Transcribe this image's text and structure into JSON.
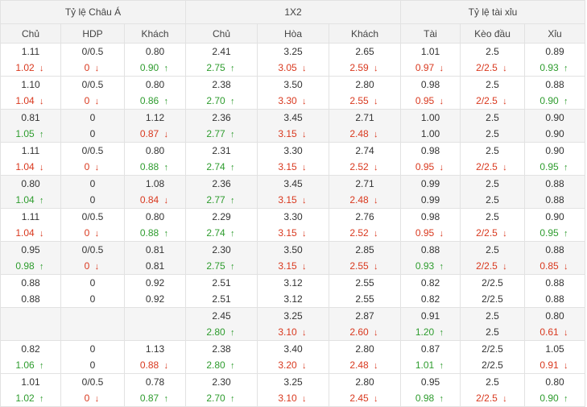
{
  "groups": [
    "Tỷ lệ Châu Á",
    "1X2",
    "Tỷ lệ tài xỉu"
  ],
  "columns": [
    "Chủ",
    "HDP",
    "Khách",
    "Chủ",
    "Hòa",
    "Khách",
    "Tài",
    "Kèo đầu",
    "Xỉu"
  ],
  "rows": [
    {
      "alt": false,
      "cells": [
        {
          "top": "1.11",
          "bottom": "1.02",
          "dir": "down"
        },
        {
          "top": "0/0.5",
          "bottom": "0",
          "dir": "down"
        },
        {
          "top": "0.80",
          "bottom": "0.90",
          "dir": "up"
        },
        {
          "top": "2.41",
          "bottom": "2.75",
          "dir": "up"
        },
        {
          "top": "3.25",
          "bottom": "3.05",
          "dir": "down"
        },
        {
          "top": "2.65",
          "bottom": "2.59",
          "dir": "down"
        },
        {
          "top": "1.01",
          "bottom": "0.97",
          "dir": "down"
        },
        {
          "top": "2.5",
          "bottom": "2/2.5",
          "dir": "down"
        },
        {
          "top": "0.89",
          "bottom": "0.93",
          "dir": "up"
        }
      ]
    },
    {
      "alt": false,
      "cells": [
        {
          "top": "1.10",
          "bottom": "1.04",
          "dir": "down"
        },
        {
          "top": "0/0.5",
          "bottom": "0",
          "dir": "down"
        },
        {
          "top": "0.80",
          "bottom": "0.86",
          "dir": "up"
        },
        {
          "top": "2.38",
          "bottom": "2.70",
          "dir": "up"
        },
        {
          "top": "3.50",
          "bottom": "3.30",
          "dir": "down"
        },
        {
          "top": "2.80",
          "bottom": "2.55",
          "dir": "down"
        },
        {
          "top": "0.98",
          "bottom": "0.95",
          "dir": "down"
        },
        {
          "top": "2.5",
          "bottom": "2/2.5",
          "dir": "down"
        },
        {
          "top": "0.88",
          "bottom": "0.90",
          "dir": "up"
        }
      ]
    },
    {
      "alt": true,
      "cells": [
        {
          "top": "0.81",
          "bottom": "1.05",
          "dir": "up"
        },
        {
          "top": "0",
          "bottom": "0",
          "dir": ""
        },
        {
          "top": "1.12",
          "bottom": "0.87",
          "dir": "down"
        },
        {
          "top": "2.36",
          "bottom": "2.77",
          "dir": "up"
        },
        {
          "top": "3.45",
          "bottom": "3.15",
          "dir": "down"
        },
        {
          "top": "2.71",
          "bottom": "2.48",
          "dir": "down"
        },
        {
          "top": "1.00",
          "bottom": "1.00",
          "dir": ""
        },
        {
          "top": "2.5",
          "bottom": "2.5",
          "dir": ""
        },
        {
          "top": "0.90",
          "bottom": "0.90",
          "dir": ""
        }
      ]
    },
    {
      "alt": false,
      "cells": [
        {
          "top": "1.11",
          "bottom": "1.04",
          "dir": "down"
        },
        {
          "top": "0/0.5",
          "bottom": "0",
          "dir": "down"
        },
        {
          "top": "0.80",
          "bottom": "0.88",
          "dir": "up"
        },
        {
          "top": "2.31",
          "bottom": "2.74",
          "dir": "up"
        },
        {
          "top": "3.30",
          "bottom": "3.15",
          "dir": "down"
        },
        {
          "top": "2.74",
          "bottom": "2.52",
          "dir": "down"
        },
        {
          "top": "0.98",
          "bottom": "0.95",
          "dir": "down"
        },
        {
          "top": "2.5",
          "bottom": "2/2.5",
          "dir": "down"
        },
        {
          "top": "0.90",
          "bottom": "0.95",
          "dir": "up"
        }
      ]
    },
    {
      "alt": true,
      "cells": [
        {
          "top": "0.80",
          "bottom": "1.04",
          "dir": "up"
        },
        {
          "top": "0",
          "bottom": "0",
          "dir": ""
        },
        {
          "top": "1.08",
          "bottom": "0.84",
          "dir": "down"
        },
        {
          "top": "2.36",
          "bottom": "2.77",
          "dir": "up"
        },
        {
          "top": "3.45",
          "bottom": "3.15",
          "dir": "down"
        },
        {
          "top": "2.71",
          "bottom": "2.48",
          "dir": "down"
        },
        {
          "top": "0.99",
          "bottom": "0.99",
          "dir": ""
        },
        {
          "top": "2.5",
          "bottom": "2.5",
          "dir": ""
        },
        {
          "top": "0.88",
          "bottom": "0.88",
          "dir": ""
        }
      ]
    },
    {
      "alt": false,
      "cells": [
        {
          "top": "1.11",
          "bottom": "1.04",
          "dir": "down"
        },
        {
          "top": "0/0.5",
          "bottom": "0",
          "dir": "down"
        },
        {
          "top": "0.80",
          "bottom": "0.88",
          "dir": "up"
        },
        {
          "top": "2.29",
          "bottom": "2.74",
          "dir": "up"
        },
        {
          "top": "3.30",
          "bottom": "3.15",
          "dir": "down"
        },
        {
          "top": "2.76",
          "bottom": "2.52",
          "dir": "down"
        },
        {
          "top": "0.98",
          "bottom": "0.95",
          "dir": "down"
        },
        {
          "top": "2.5",
          "bottom": "2/2.5",
          "dir": "down"
        },
        {
          "top": "0.90",
          "bottom": "0.95",
          "dir": "up"
        }
      ]
    },
    {
      "alt": true,
      "cells": [
        {
          "top": "0.95",
          "bottom": "0.98",
          "dir": "up"
        },
        {
          "top": "0/0.5",
          "bottom": "0",
          "dir": "down"
        },
        {
          "top": "0.81",
          "bottom": "0.81",
          "dir": ""
        },
        {
          "top": "2.30",
          "bottom": "2.75",
          "dir": "up"
        },
        {
          "top": "3.50",
          "bottom": "3.15",
          "dir": "down"
        },
        {
          "top": "2.85",
          "bottom": "2.55",
          "dir": "down"
        },
        {
          "top": "0.88",
          "bottom": "0.93",
          "dir": "up"
        },
        {
          "top": "2.5",
          "bottom": "2/2.5",
          "dir": "down"
        },
        {
          "top": "0.88",
          "bottom": "0.85",
          "dir": "down"
        }
      ]
    },
    {
      "alt": false,
      "cells": [
        {
          "top": "0.88",
          "bottom": "0.88",
          "dir": ""
        },
        {
          "top": "0",
          "bottom": "0",
          "dir": ""
        },
        {
          "top": "0.92",
          "bottom": "0.92",
          "dir": ""
        },
        {
          "top": "2.51",
          "bottom": "2.51",
          "dir": ""
        },
        {
          "top": "3.12",
          "bottom": "3.12",
          "dir": ""
        },
        {
          "top": "2.55",
          "bottom": "2.55",
          "dir": ""
        },
        {
          "top": "0.82",
          "bottom": "0.82",
          "dir": ""
        },
        {
          "top": "2/2.5",
          "bottom": "2/2.5",
          "dir": ""
        },
        {
          "top": "0.88",
          "bottom": "0.88",
          "dir": ""
        }
      ]
    },
    {
      "alt": true,
      "cells": [
        {
          "top": "",
          "bottom": "",
          "dir": ""
        },
        {
          "top": "",
          "bottom": "",
          "dir": ""
        },
        {
          "top": "",
          "bottom": "",
          "dir": ""
        },
        {
          "top": "2.45",
          "bottom": "2.80",
          "dir": "up"
        },
        {
          "top": "3.25",
          "bottom": "3.10",
          "dir": "down"
        },
        {
          "top": "2.87",
          "bottom": "2.60",
          "dir": "down"
        },
        {
          "top": "0.91",
          "bottom": "1.20",
          "dir": "up"
        },
        {
          "top": "2.5",
          "bottom": "2.5",
          "dir": ""
        },
        {
          "top": "0.80",
          "bottom": "0.61",
          "dir": "down"
        }
      ]
    },
    {
      "alt": false,
      "cells": [
        {
          "top": "0.82",
          "bottom": "1.06",
          "dir": "up"
        },
        {
          "top": "0",
          "bottom": "0",
          "dir": ""
        },
        {
          "top": "1.13",
          "bottom": "0.88",
          "dir": "down"
        },
        {
          "top": "2.38",
          "bottom": "2.80",
          "dir": "up"
        },
        {
          "top": "3.40",
          "bottom": "3.20",
          "dir": "down"
        },
        {
          "top": "2.80",
          "bottom": "2.48",
          "dir": "down"
        },
        {
          "top": "0.87",
          "bottom": "1.01",
          "dir": "up"
        },
        {
          "top": "2/2.5",
          "bottom": "2/2.5",
          "dir": ""
        },
        {
          "top": "1.05",
          "bottom": "0.91",
          "dir": "down"
        }
      ]
    },
    {
      "alt": false,
      "cells": [
        {
          "top": "1.01",
          "bottom": "1.02",
          "dir": "up"
        },
        {
          "top": "0/0.5",
          "bottom": "0",
          "dir": "down"
        },
        {
          "top": "0.78",
          "bottom": "0.87",
          "dir": "up"
        },
        {
          "top": "2.30",
          "bottom": "2.70",
          "dir": "up"
        },
        {
          "top": "3.25",
          "bottom": "3.10",
          "dir": "down"
        },
        {
          "top": "2.80",
          "bottom": "2.45",
          "dir": "down"
        },
        {
          "top": "0.95",
          "bottom": "0.98",
          "dir": "up"
        },
        {
          "top": "2.5",
          "bottom": "2/2.5",
          "dir": "down"
        },
        {
          "top": "0.80",
          "bottom": "0.90",
          "dir": "up"
        }
      ]
    }
  ]
}
